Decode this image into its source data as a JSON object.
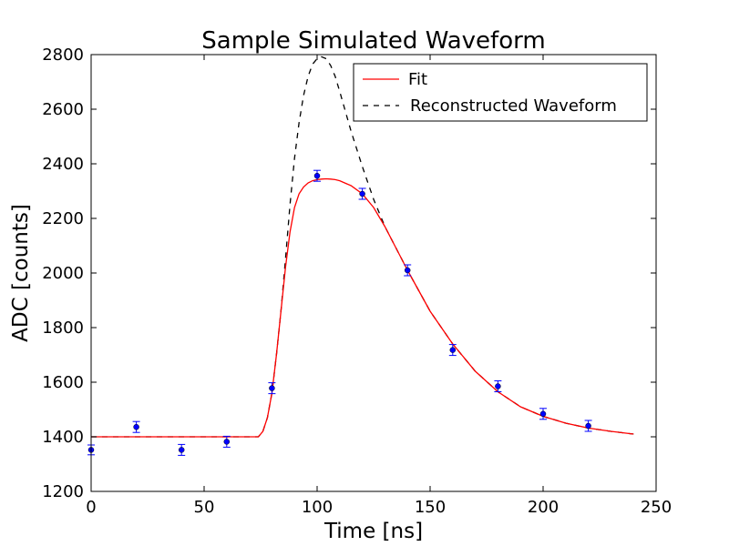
{
  "chart_data": {
    "type": "line",
    "title": "Sample Simulated Waveform",
    "xlabel": "Time [ns]",
    "ylabel": "ADC [counts]",
    "xlim": [
      0,
      250
    ],
    "ylim": [
      1200,
      2800
    ],
    "xticks": [
      0,
      50,
      100,
      150,
      200,
      250
    ],
    "yticks": [
      1200,
      1400,
      1600,
      1800,
      2000,
      2200,
      2400,
      2600,
      2800
    ],
    "grid": false,
    "legend_position": "top-right",
    "series": [
      {
        "name": "Fit",
        "style": "solid",
        "color": "#ff0000",
        "x": [
          0,
          74,
          76,
          78,
          80,
          82,
          84,
          86,
          88,
          90,
          92,
          94,
          96,
          98,
          100,
          102,
          104,
          106,
          108,
          110,
          115,
          120,
          125,
          130,
          135,
          140,
          145,
          150,
          160,
          170,
          180,
          190,
          200,
          210,
          220,
          230,
          240
        ],
        "y": [
          1400,
          1400,
          1420,
          1470,
          1560,
          1700,
          1860,
          2020,
          2150,
          2240,
          2290,
          2315,
          2330,
          2338,
          2342,
          2344,
          2345,
          2344,
          2342,
          2338,
          2320,
          2290,
          2240,
          2170,
          2090,
          2010,
          1935,
          1860,
          1740,
          1640,
          1565,
          1510,
          1475,
          1450,
          1432,
          1420,
          1410
        ]
      },
      {
        "name": "Reconstructed Waveform",
        "style": "dashed",
        "color": "#000000",
        "x": [
          0,
          74,
          76,
          78,
          80,
          82,
          84,
          86,
          88,
          90,
          92,
          94,
          96,
          98,
          100,
          102,
          104,
          106,
          108,
          110,
          115,
          120,
          125,
          130,
          135,
          140,
          145,
          150,
          160,
          170,
          180,
          190,
          200,
          210,
          220,
          230,
          240
        ],
        "y": [
          1400,
          1400,
          1420,
          1470,
          1560,
          1700,
          1860,
          2050,
          2250,
          2420,
          2550,
          2650,
          2720,
          2765,
          2785,
          2792,
          2785,
          2760,
          2720,
          2665,
          2520,
          2390,
          2270,
          2170,
          2090,
          2010,
          1935,
          1860,
          1740,
          1640,
          1565,
          1510,
          1475,
          1450,
          1432,
          1420,
          1410
        ]
      },
      {
        "name": "data",
        "style": "points",
        "color": "#0000ff",
        "x": [
          0,
          20,
          40,
          60,
          80,
          100,
          120,
          140,
          160,
          180,
          200,
          220
        ],
        "y": [
          1352,
          1436,
          1352,
          1382,
          1578,
          2356,
          2290,
          2010,
          1718,
          1585,
          1484,
          1440
        ],
        "yerr": [
          18,
          20,
          20,
          20,
          20,
          20,
          20,
          20,
          20,
          20,
          20,
          20
        ]
      }
    ]
  }
}
